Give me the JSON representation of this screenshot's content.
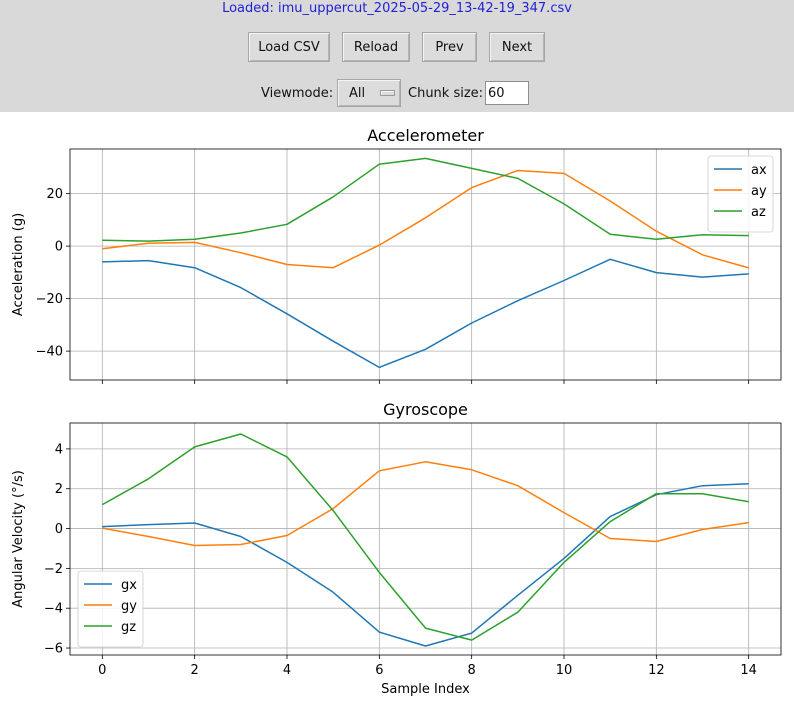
{
  "status_text": "Loaded: imu_uppercut_2025-05-29_13-42-19_347.csv",
  "buttons": {
    "load_csv": "Load CSV",
    "reload": "Reload",
    "prev": "Prev",
    "next": "Next"
  },
  "controls": {
    "viewmode_label": "Viewmode:",
    "viewmode_value": "All",
    "chunk_label": "Chunk size:",
    "chunk_value": "60"
  },
  "colors": {
    "blue": "#1f77b4",
    "orange": "#ff7f0e",
    "green": "#2ca02c",
    "status": "#1f1fd6"
  },
  "chart_data": [
    {
      "type": "line",
      "title": "Accelerometer",
      "xlabel": "",
      "ylabel": "Acceleration (g)",
      "ylim": [
        -51,
        37
      ],
      "yticks": [
        -40,
        -20,
        0,
        20
      ],
      "xlim": [
        -0.7,
        14.7
      ],
      "xticks": [
        0,
        2,
        4,
        6,
        8,
        10,
        12,
        14
      ],
      "grid": true,
      "legend": "top-right",
      "x": [
        0,
        1,
        2,
        3,
        4,
        5,
        6,
        7,
        8,
        9,
        10,
        11,
        12,
        13,
        14
      ],
      "series": [
        {
          "name": "ax",
          "color": "#1f77b4",
          "values": [
            -6,
            -5.5,
            -8.2,
            -15.8,
            -25.8,
            -36.2,
            -46.2,
            -39.3,
            -29.3,
            -20.8,
            -13.1,
            -5,
            -10.1,
            -11.8,
            -10.6
          ]
        },
        {
          "name": "ay",
          "color": "#ff7f0e",
          "values": [
            -1,
            1.1,
            1.4,
            -2.5,
            -7,
            -8.2,
            0.4,
            10.8,
            22.3,
            28.8,
            27.7,
            17.2,
            5.7,
            -3.3,
            -8.3
          ]
        },
        {
          "name": "az",
          "color": "#2ca02c",
          "values": [
            2.2,
            1.9,
            2.6,
            5,
            8.3,
            18.8,
            31.2,
            33.4,
            29.6,
            25.8,
            16.1,
            4.5,
            2.6,
            4.3,
            4
          ]
        }
      ]
    },
    {
      "type": "line",
      "title": "Gyroscope",
      "xlabel": "Sample Index",
      "ylabel": "Angular Velocity (°/s)",
      "ylim": [
        -6.35,
        5.3
      ],
      "yticks": [
        -6,
        -4,
        -2,
        0,
        2,
        4
      ],
      "xlim": [
        -0.7,
        14.7
      ],
      "xticks": [
        0,
        2,
        4,
        6,
        8,
        10,
        12,
        14
      ],
      "grid": true,
      "legend": "bottom-left",
      "x": [
        0,
        1,
        2,
        3,
        4,
        5,
        6,
        7,
        8,
        9,
        10,
        11,
        12,
        13,
        14
      ],
      "series": [
        {
          "name": "gx",
          "color": "#1f77b4",
          "values": [
            0.1,
            0.2,
            0.28,
            -0.4,
            -1.7,
            -3.2,
            -5.2,
            -5.9,
            -5.25,
            -3.35,
            -1.5,
            0.6,
            1.7,
            2.15,
            2.25
          ]
        },
        {
          "name": "gy",
          "color": "#ff7f0e",
          "values": [
            0.02,
            -0.4,
            -0.85,
            -0.8,
            -0.35,
            1,
            2.9,
            3.35,
            2.95,
            2.15,
            0.8,
            -0.5,
            -0.65,
            -0.05,
            0.3
          ]
        },
        {
          "name": "gz",
          "color": "#2ca02c",
          "values": [
            1.2,
            2.5,
            4.1,
            4.75,
            3.6,
            0.9,
            -2.2,
            -5,
            -5.6,
            -4.2,
            -1.7,
            0.35,
            1.75,
            1.75,
            1.35
          ]
        }
      ]
    }
  ]
}
